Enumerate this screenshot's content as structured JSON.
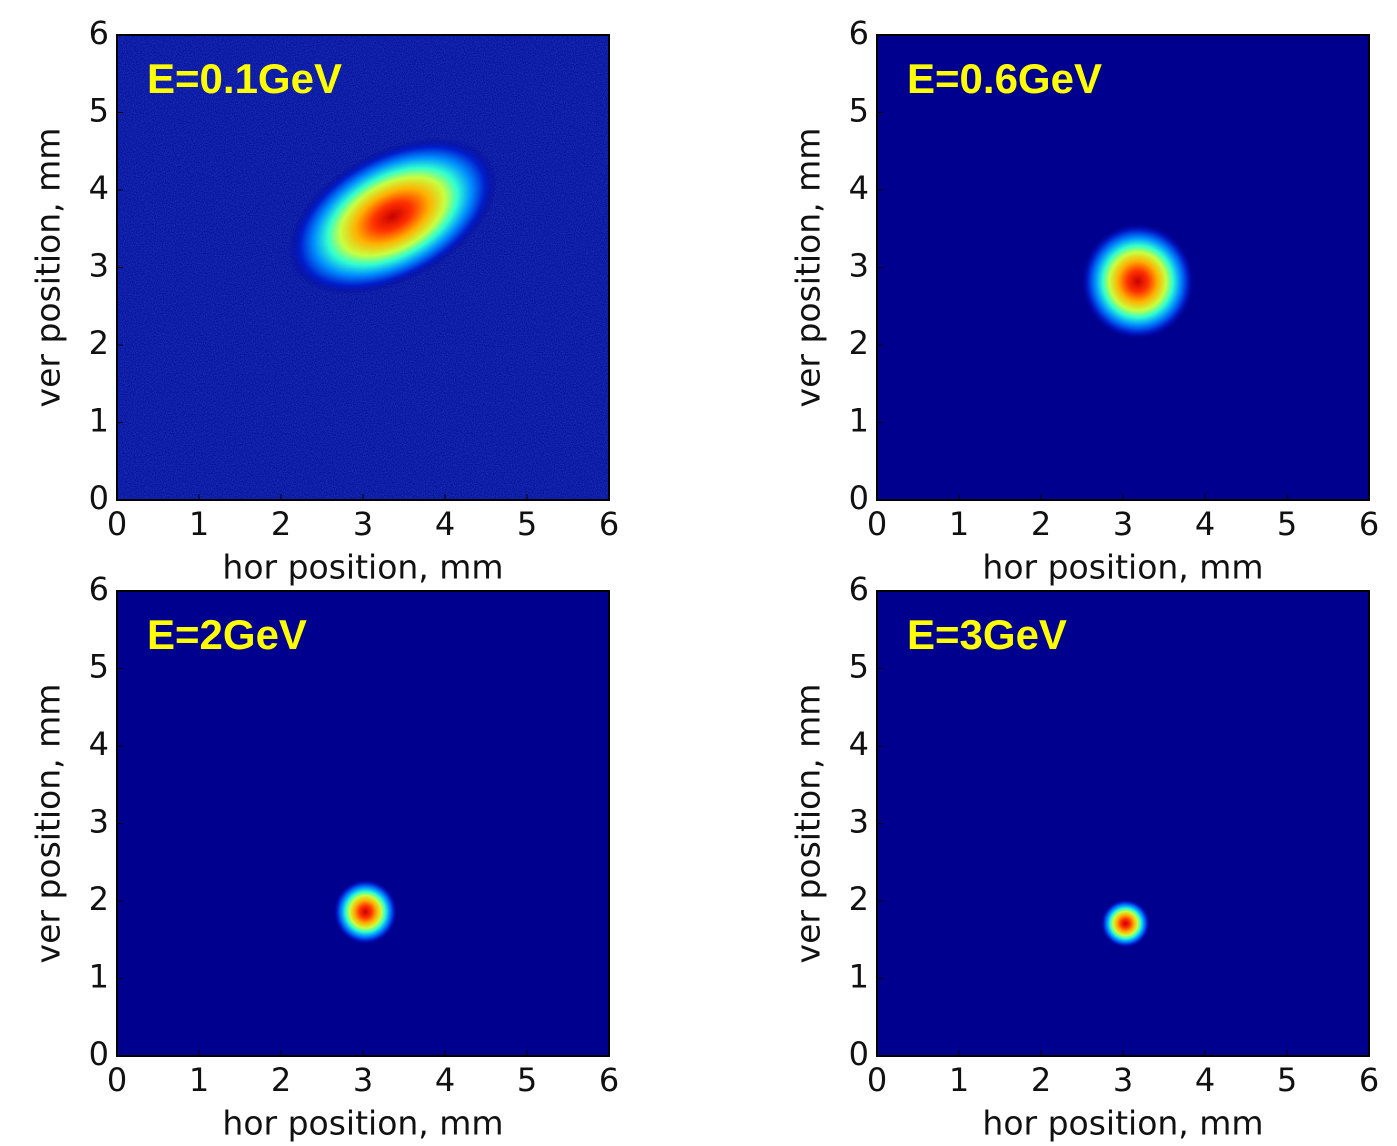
{
  "chart_data": [
    {
      "type": "heatmap",
      "annotation": "E=0.1GeV",
      "annotation_color": "#ffff00",
      "xlabel": "hor position, mm",
      "ylabel": "ver position, mm",
      "xlim": [
        0,
        6
      ],
      "ylim": [
        0,
        6
      ],
      "xticks": [
        0,
        1,
        2,
        3,
        4,
        5,
        6
      ],
      "yticks": [
        0,
        1,
        2,
        3,
        4,
        5,
        6
      ]
    },
    {
      "type": "heatmap",
      "annotation": "E=0.6GeV",
      "annotation_color": "#ffff00",
      "xlabel": "hor position, mm",
      "ylabel": "ver position, mm",
      "xlim": [
        0,
        6
      ],
      "ylim": [
        0,
        6
      ],
      "xticks": [
        0,
        1,
        2,
        3,
        4,
        5,
        6
      ],
      "yticks": [
        0,
        1,
        2,
        3,
        4,
        5,
        6
      ]
    },
    {
      "type": "heatmap",
      "annotation": "E=2GeV",
      "annotation_color": "#ffff00",
      "xlabel": "hor position, mm",
      "ylabel": "ver position, mm",
      "xlim": [
        0,
        6
      ],
      "ylim": [
        0,
        6
      ],
      "xticks": [
        0,
        1,
        2,
        3,
        4,
        5,
        6
      ],
      "yticks": [
        0,
        1,
        2,
        3,
        4,
        5,
        6
      ]
    },
    {
      "type": "heatmap",
      "annotation": "E=3GeV",
      "annotation_color": "#ffff00",
      "xlabel": "hor position, mm",
      "ylabel": "ver position, mm",
      "xlim": [
        0,
        6
      ],
      "ylim": [
        0,
        6
      ],
      "xticks": [
        0,
        1,
        2,
        3,
        4,
        5,
        6
      ],
      "yticks": [
        0,
        1,
        2,
        3,
        4,
        5,
        6
      ]
    }
  ]
}
